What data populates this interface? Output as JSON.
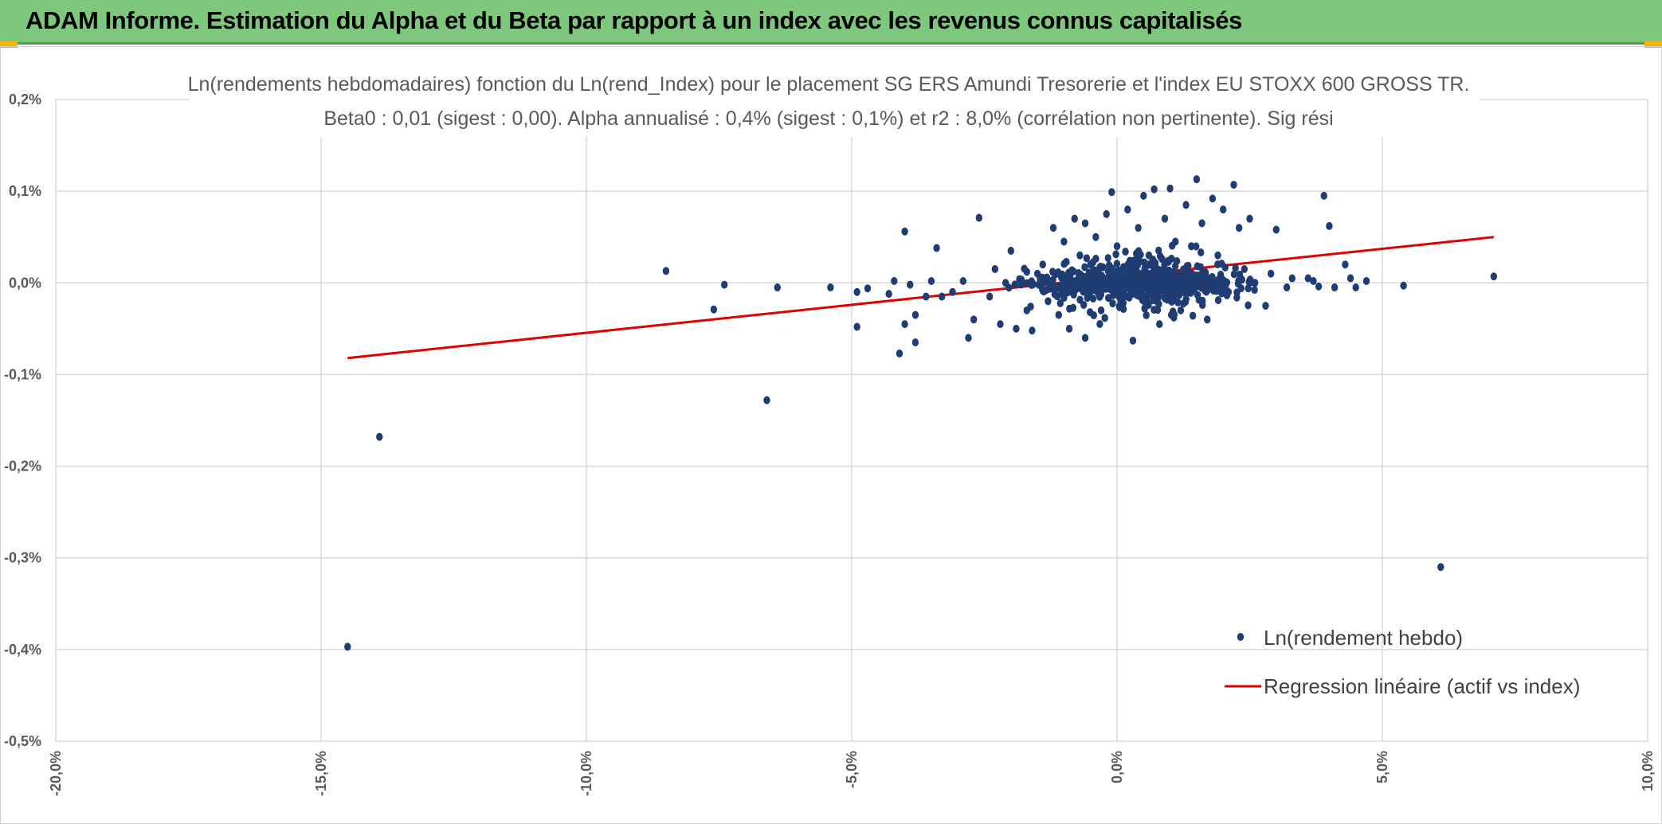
{
  "banner": {
    "title": "ADAM Informe. Estimation du Alpha et du Beta par rapport à un index avec les revenus connus capitalisés",
    "background": "#7ec87e"
  },
  "chart_data": {
    "type": "scatter",
    "title": "Ln(rendements hebdomadaires) fonction du Ln(rend_Index) pour le placement SG ERS Amundi Tresorerie  et l'index EU STOXX 600 GROSS TR.",
    "subtitle": "Beta0 : 0,01 (sigest : 0,00). Alpha annualisé : 0,4% (sigest : 0,1%) et r2 : 8,0% (corrélation non pertinente). Sig rési",
    "xlabel": "",
    "ylabel": "",
    "xlim": [
      -20,
      10
    ],
    "ylim": [
      -0.5,
      0.2
    ],
    "x_ticks": [
      "-20,0%",
      "-15,0%",
      "-10,0%",
      "-5,0%",
      "0,0%",
      "5,0%",
      "10,0%"
    ],
    "x_tick_values": [
      -20,
      -15,
      -10,
      -5,
      0,
      5,
      10
    ],
    "y_ticks": [
      "0,2%",
      "0,1%",
      "0,0%",
      "-0,1%",
      "-0,2%",
      "-0,3%",
      "-0,4%",
      "-0,5%"
    ],
    "y_tick_values": [
      0.2,
      0.1,
      0.0,
      -0.1,
      -0.2,
      -0.3,
      -0.4,
      -0.5
    ],
    "grid": true,
    "legend_position": "bottom-right",
    "series": [
      {
        "name": "Ln(rendement hebdo)",
        "color": "#1f3d73",
        "marker": "dot",
        "points": [
          [
            -14.5,
            -0.397
          ],
          [
            -13.9,
            -0.168
          ],
          [
            -8.5,
            0.013
          ],
          [
            -7.6,
            -0.029
          ],
          [
            -7.4,
            -0.002
          ],
          [
            -6.6,
            -0.128
          ],
          [
            -6.4,
            -0.005
          ],
          [
            -5.4,
            -0.005
          ],
          [
            -4.9,
            -0.048
          ],
          [
            -4.9,
            -0.01
          ],
          [
            -4.7,
            -0.006
          ],
          [
            -4.3,
            -0.012
          ],
          [
            -4.2,
            0.002
          ],
          [
            -4.1,
            -0.077
          ],
          [
            -4.0,
            0.056
          ],
          [
            -4.0,
            -0.045
          ],
          [
            -3.9,
            -0.002
          ],
          [
            -3.8,
            -0.065
          ],
          [
            -3.8,
            -0.035
          ],
          [
            -3.6,
            -0.015
          ],
          [
            -3.5,
            0.002
          ],
          [
            -3.4,
            0.038
          ],
          [
            -3.3,
            -0.015
          ],
          [
            -3.1,
            -0.01
          ],
          [
            -2.9,
            0.002
          ],
          [
            -2.8,
            -0.06
          ],
          [
            -2.7,
            -0.04
          ],
          [
            -2.6,
            0.071
          ],
          [
            -2.4,
            -0.015
          ],
          [
            -2.3,
            0.015
          ],
          [
            -2.2,
            -0.045
          ],
          [
            -2.1,
            0.0
          ],
          [
            -2.0,
            0.035
          ],
          [
            -1.9,
            -0.05
          ],
          [
            -1.7,
            0.012
          ],
          [
            -1.7,
            -0.03
          ],
          [
            -1.6,
            -0.052
          ],
          [
            -1.5,
            0.01
          ],
          [
            -1.4,
            0.02
          ],
          [
            -1.3,
            -0.02
          ],
          [
            -1.2,
            0.06
          ],
          [
            -1.1,
            -0.035
          ],
          [
            -1.0,
            0.045
          ],
          [
            -0.9,
            -0.05
          ],
          [
            -0.8,
            0.07
          ],
          [
            -0.7,
            0.03
          ],
          [
            -0.6,
            -0.06
          ],
          [
            -0.6,
            0.065
          ],
          [
            -0.5,
            0.02
          ],
          [
            -0.4,
            0.05
          ],
          [
            -0.3,
            -0.03
          ],
          [
            -0.2,
            0.075
          ],
          [
            -0.1,
            0.099
          ],
          [
            0.0,
            0.04
          ],
          [
            0.1,
            -0.02
          ],
          [
            0.2,
            0.08
          ],
          [
            0.3,
            -0.063
          ],
          [
            0.4,
            0.06
          ],
          [
            0.5,
            0.095
          ],
          [
            0.6,
            0.03
          ],
          [
            0.7,
            0.102
          ],
          [
            0.8,
            -0.045
          ],
          [
            0.9,
            0.07
          ],
          [
            1.0,
            0.103
          ],
          [
            1.1,
            0.045
          ],
          [
            1.2,
            -0.03
          ],
          [
            1.3,
            0.085
          ],
          [
            1.4,
            0.04
          ],
          [
            1.5,
            0.113
          ],
          [
            1.6,
            0.065
          ],
          [
            1.7,
            -0.04
          ],
          [
            1.8,
            0.092
          ],
          [
            1.9,
            0.03
          ],
          [
            2.0,
            0.08
          ],
          [
            2.1,
            -0.01
          ],
          [
            2.2,
            0.107
          ],
          [
            2.3,
            0.06
          ],
          [
            2.4,
            0.015
          ],
          [
            2.5,
            0.07
          ],
          [
            2.6,
            0.0
          ],
          [
            2.8,
            -0.025
          ],
          [
            2.9,
            0.01
          ],
          [
            3.0,
            0.058
          ],
          [
            3.2,
            -0.005
          ],
          [
            3.3,
            0.005
          ],
          [
            3.6,
            0.005
          ],
          [
            3.7,
            0.002
          ],
          [
            3.8,
            -0.004
          ],
          [
            3.9,
            0.095
          ],
          [
            4.0,
            0.062
          ],
          [
            4.1,
            -0.005
          ],
          [
            4.3,
            0.02
          ],
          [
            4.4,
            0.005
          ],
          [
            4.5,
            -0.005
          ],
          [
            4.7,
            0.002
          ],
          [
            5.4,
            -0.003
          ],
          [
            6.1,
            -0.31
          ],
          [
            7.1,
            0.007
          ]
        ]
      },
      {
        "name": "Regression linéaire (actif vs index)",
        "color": "#e00000",
        "type": "line",
        "points": [
          [
            -14.5,
            -0.082
          ],
          [
            7.1,
            0.05
          ]
        ]
      }
    ]
  }
}
